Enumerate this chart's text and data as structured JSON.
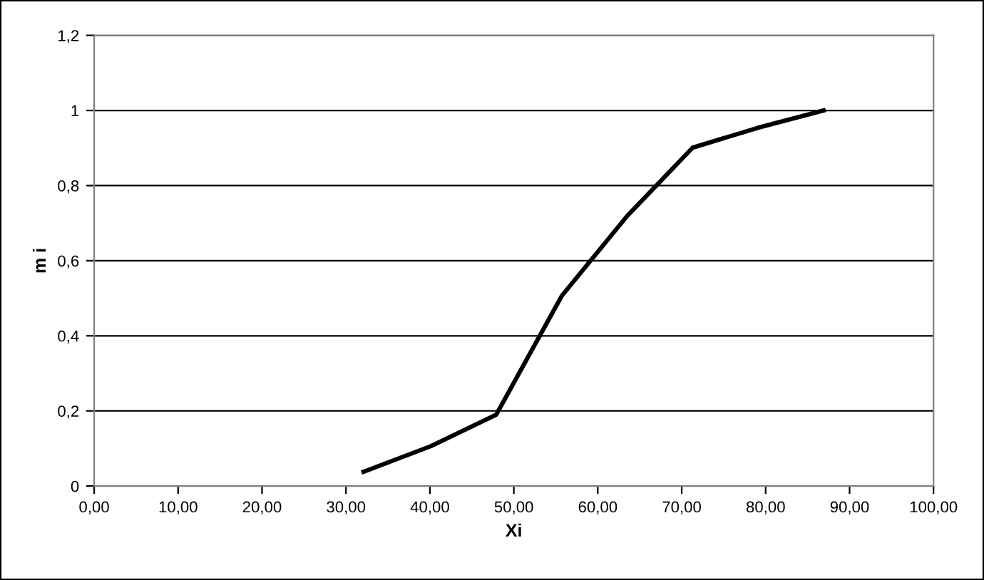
{
  "chart_data": {
    "type": "line",
    "xlabel": "Xi",
    "ylabel": "m i",
    "series": [
      {
        "color": "#000000",
        "x": [
          32.1,
          40.1,
          47.9,
          55.7,
          63.5,
          71.3,
          79.1,
          86.9
        ],
        "values": [
          0.038,
          0.106,
          0.19,
          0.506,
          0.719,
          0.901,
          0.954,
          1.0
        ]
      }
    ],
    "xlim": [
      0,
      100
    ],
    "ylim": [
      0,
      1.2
    ],
    "xticks": [
      {
        "value": 0,
        "label": "0,00"
      },
      {
        "value": 10,
        "label": "10,00"
      },
      {
        "value": 20,
        "label": "20,00"
      },
      {
        "value": 30,
        "label": "30,00"
      },
      {
        "value": 40,
        "label": "40,00"
      },
      {
        "value": 50,
        "label": "50,00"
      },
      {
        "value": 60,
        "label": "60,00"
      },
      {
        "value": 70,
        "label": "70,00"
      },
      {
        "value": 80,
        "label": "80,00"
      },
      {
        "value": 90,
        "label": "90,00"
      },
      {
        "value": 100,
        "label": "100,00"
      }
    ],
    "yticks": [
      0,
      {
        "value": 0.2,
        "label": "0,2"
      },
      {
        "value": 0.4,
        "label": "0,4"
      },
      {
        "value": 0.6,
        "label": "0,6"
      },
      {
        "value": 0.8,
        "label": "0,8"
      },
      1,
      {
        "value": 1.2,
        "label": "1,2"
      }
    ],
    "grid": "y",
    "legend": false,
    "marker": "none",
    "line_style": "solid"
  }
}
